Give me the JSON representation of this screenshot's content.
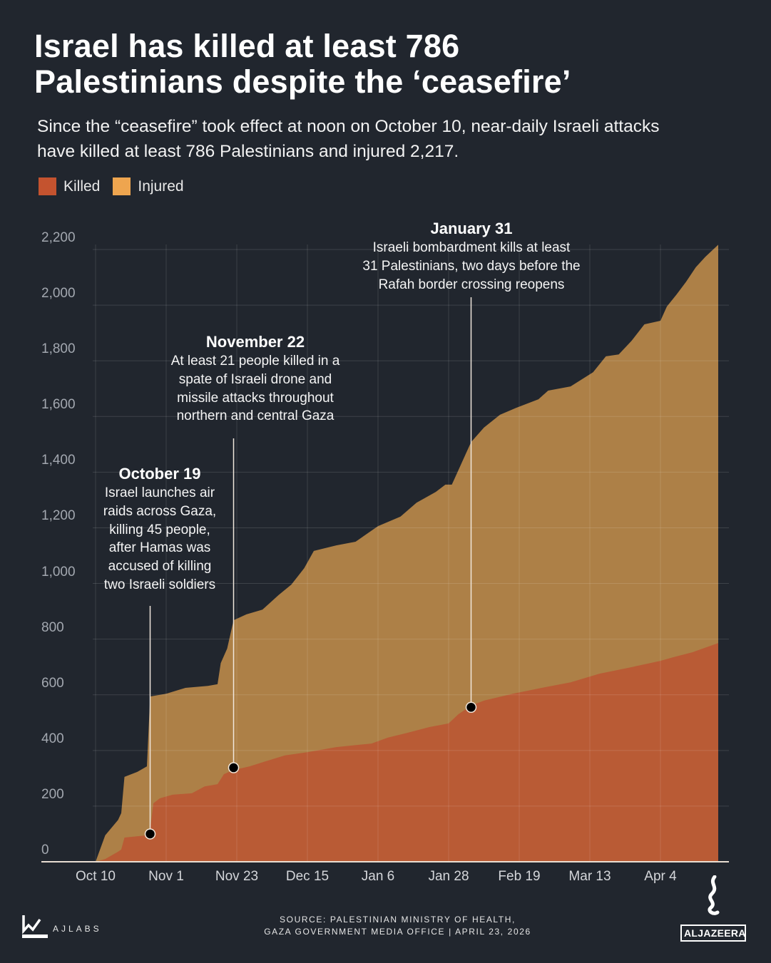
{
  "header": {
    "title_line1": "Israel has killed at least 786",
    "title_line2": "Palestinians despite the ‘ceasefire’",
    "subtitle_line1": "Since the “ceasefire” took effect at noon on October 10, near-daily Israeli attacks",
    "subtitle_line2": "have killed at least 786 Palestinians and injured 2,217."
  },
  "colors": {
    "background": "#21262e",
    "killed": "#b95b35",
    "injured": "#ad8047",
    "legend_killed": "#c4532f",
    "legend_injured": "#eea54f"
  },
  "chart_data": {
    "type": "area",
    "overlapping": true,
    "legend": [
      "Killed",
      "Injured"
    ],
    "legend_placement": "top-left",
    "ylim": [
      0,
      2200
    ],
    "yticks": [
      0,
      200,
      400,
      600,
      800,
      1000,
      1200,
      1400,
      1600,
      1800,
      2000,
      2200
    ],
    "ytick_labels": [
      "0",
      "200",
      "400",
      "600",
      "800",
      "1,000",
      "1,200",
      "1,400",
      "1,600",
      "1,800",
      "2,000",
      "2,200"
    ],
    "xlim": [
      "2025-10-10",
      "2026-04-22"
    ],
    "xticks": [
      "2025-10-10",
      "2025-11-01",
      "2025-11-23",
      "2025-12-15",
      "2026-01-06",
      "2026-01-28",
      "2026-02-19",
      "2026-03-13",
      "2026-04-04"
    ],
    "xtick_labels": [
      "Oct 10",
      "Nov 1",
      "Nov 23",
      "Dec 15",
      "Jan 6",
      "Jan 28",
      "Feb 19",
      "Mar 13",
      "Apr 4"
    ],
    "grid": true,
    "series": [
      {
        "name": "Injured",
        "color": "#ad8047",
        "points": [
          [
            "2025-10-10",
            0
          ],
          [
            "2025-10-13",
            95
          ],
          [
            "2025-10-17",
            150
          ],
          [
            "2025-10-18",
            175
          ],
          [
            "2025-10-19",
            305
          ],
          [
            "2025-10-23",
            323
          ],
          [
            "2025-10-26",
            343
          ],
          [
            "2025-10-27",
            594
          ],
          [
            "2025-11-01",
            604
          ],
          [
            "2025-11-07",
            625
          ],
          [
            "2025-11-14",
            632
          ],
          [
            "2025-11-17",
            638
          ],
          [
            "2025-11-18",
            714
          ],
          [
            "2025-11-20",
            766
          ],
          [
            "2025-11-22",
            868
          ],
          [
            "2025-11-26",
            889
          ],
          [
            "2025-12-01",
            906
          ],
          [
            "2025-12-06",
            958
          ],
          [
            "2025-12-10",
            996
          ],
          [
            "2025-12-14",
            1055
          ],
          [
            "2025-12-17",
            1117
          ],
          [
            "2025-12-24",
            1137
          ],
          [
            "2025-12-30",
            1150
          ],
          [
            "2026-01-06",
            1206
          ],
          [
            "2026-01-13",
            1240
          ],
          [
            "2026-01-18",
            1290
          ],
          [
            "2026-01-24",
            1329
          ],
          [
            "2026-01-27",
            1355
          ],
          [
            "2026-01-29",
            1355
          ],
          [
            "2026-02-02",
            1457
          ],
          [
            "2026-02-04",
            1508
          ],
          [
            "2026-02-08",
            1560
          ],
          [
            "2026-02-13",
            1606
          ],
          [
            "2026-02-18",
            1631
          ],
          [
            "2026-02-25",
            1662
          ],
          [
            "2026-02-28",
            1693
          ],
          [
            "2026-03-07",
            1708
          ],
          [
            "2026-03-14",
            1759
          ],
          [
            "2026-03-18",
            1816
          ],
          [
            "2026-03-22",
            1823
          ],
          [
            "2026-03-26",
            1872
          ],
          [
            "2026-03-30",
            1931
          ],
          [
            "2026-04-04",
            1944
          ],
          [
            "2026-04-06",
            1995
          ],
          [
            "2026-04-09",
            2038
          ],
          [
            "2026-04-12",
            2084
          ],
          [
            "2026-04-15",
            2136
          ],
          [
            "2026-04-18",
            2174
          ],
          [
            "2026-04-22",
            2217
          ]
        ]
      },
      {
        "name": "Killed",
        "color": "#b95b35",
        "points": [
          [
            "2025-10-10",
            0
          ],
          [
            "2025-10-13",
            10
          ],
          [
            "2025-10-17",
            36
          ],
          [
            "2025-10-18",
            44
          ],
          [
            "2025-10-19",
            87
          ],
          [
            "2025-10-26",
            95
          ],
          [
            "2025-10-27",
            113
          ],
          [
            "2025-10-28",
            210
          ],
          [
            "2025-10-30",
            228
          ],
          [
            "2025-11-03",
            241
          ],
          [
            "2025-11-09",
            246
          ],
          [
            "2025-11-13",
            271
          ],
          [
            "2025-11-17",
            279
          ],
          [
            "2025-11-19",
            315
          ],
          [
            "2025-11-22",
            330
          ],
          [
            "2025-11-27",
            343
          ],
          [
            "2025-12-02",
            361
          ],
          [
            "2025-12-08",
            382
          ],
          [
            "2025-12-15",
            394
          ],
          [
            "2025-12-24",
            412
          ],
          [
            "2026-01-04",
            425
          ],
          [
            "2026-01-09",
            446
          ],
          [
            "2026-01-15",
            463
          ],
          [
            "2026-01-22",
            484
          ],
          [
            "2026-01-28",
            497
          ],
          [
            "2026-01-31",
            530
          ],
          [
            "2026-02-04",
            561
          ],
          [
            "2026-02-08",
            579
          ],
          [
            "2026-02-17",
            604
          ],
          [
            "2026-02-26",
            625
          ],
          [
            "2026-03-07",
            645
          ],
          [
            "2026-03-16",
            676
          ],
          [
            "2026-03-25",
            697
          ],
          [
            "2026-04-04",
            722
          ],
          [
            "2026-04-08",
            735
          ],
          [
            "2026-04-14",
            753
          ],
          [
            "2026-04-22",
            786
          ]
        ]
      }
    ],
    "annotations": [
      {
        "date": "2025-10-27",
        "value": 100,
        "title": "October 19",
        "lines": [
          "Israel launches air",
          "raids across Gaza,",
          "killing 45 people,",
          "after Hamas was",
          "accused of killing",
          "two Israeli soldiers"
        ]
      },
      {
        "date": "2025-11-22",
        "value": 338,
        "title": "November 22",
        "lines": [
          "At least 21 people killed in a",
          "spate of Israeli drone and",
          "missile attacks throughout",
          "northern and central Gaza"
        ]
      },
      {
        "date": "2026-02-04",
        "value": 555,
        "title": "January 31",
        "lines": [
          "Israeli bombardment kills at least",
          "31 Palestinians, two days before the",
          "Rafah border crossing reopens"
        ]
      }
    ]
  },
  "footer": {
    "source_line1": "SOURCE:  PALESTINIAN MINISTRY OF HEALTH,",
    "source_line2": "GAZA GOVERNMENT MEDIA OFFICE  |   APRIL 23, 2026",
    "ajlabs_logo": "AJLABS",
    "aljazeera_logo": "ALJAZEERA"
  }
}
